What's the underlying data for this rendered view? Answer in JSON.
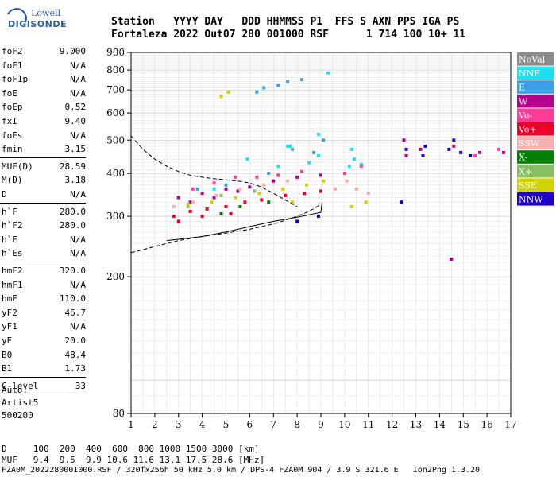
{
  "logo": {
    "line1": "Lowell",
    "line2": "DIGISONDE"
  },
  "header": {
    "row1": "Station   YYYY DAY   DDD HHMMSS P1  FFS S AXN PPS IGA PS",
    "row2": "Fortaleza 2022 Out07 280 001000 RSF      1 714 100 10+ 11"
  },
  "params": {
    "group1": [
      {
        "k": "foF2",
        "v": "9.000"
      },
      {
        "k": "foF1",
        "v": "N/A"
      },
      {
        "k": "foF1p",
        "v": "N/A"
      },
      {
        "k": "foE",
        "v": "N/A"
      },
      {
        "k": "foEp",
        "v": "0.52"
      },
      {
        "k": "fxI",
        "v": "9.40"
      },
      {
        "k": "foEs",
        "v": "N/A"
      },
      {
        "k": "fmin",
        "v": "3.15"
      }
    ],
    "group2": [
      {
        "k": "MUF(D)",
        "v": "28.59"
      },
      {
        "k": "M(D)",
        "v": "3.18"
      },
      {
        "k": "D",
        "v": "N/A"
      }
    ],
    "group3": [
      {
        "k": "h`F",
        "v": "280.0"
      },
      {
        "k": "h`F2",
        "v": "280.0"
      },
      {
        "k": "h`E",
        "v": "N/A"
      },
      {
        "k": "h`Es",
        "v": "N/A"
      }
    ],
    "group4": [
      {
        "k": "hmF2",
        "v": "320.0"
      },
      {
        "k": "hmF1",
        "v": "N/A"
      },
      {
        "k": "hmE",
        "v": "110.0"
      },
      {
        "k": "yF2",
        "v": "46.7"
      },
      {
        "k": "yF1",
        "v": "N/A"
      },
      {
        "k": "yE",
        "v": "20.0"
      },
      {
        "k": "B0",
        "v": "48.4"
      },
      {
        "k": "B1",
        "v": "1.73"
      }
    ],
    "group5": [
      {
        "k": "C-level",
        "v": "33"
      }
    ]
  },
  "auto": {
    "line1": "Auto:",
    "line2": "Artist5",
    "line3": "500200"
  },
  "bottom": {
    "d_line": "D     100  200  400  600  800 1000 1500 3000 [km]",
    "muf_line": "MUF   9.4  9.5  9.9 10.6 11.6 13.1 17.5 28.6 [MHz]",
    "file_line": "FZA0M_2022280001000.RSF / 320fx256h 50 kHz 5.0 km / DPS-4 FZA0M 904 / 3.9 S 321.6 E   Ion2Png 1.3.20"
  },
  "legend": [
    {
      "label": "NoVal",
      "color": "#8c8c8c"
    },
    {
      "label": "NNE",
      "color": "#19e1f0"
    },
    {
      "label": "E",
      "color": "#3ca0e6"
    },
    {
      "label": "W",
      "color": "#b4008c"
    },
    {
      "label": "Vo-",
      "color": "#ff3c96"
    },
    {
      "label": "Vo+",
      "color": "#f00028"
    },
    {
      "label": "SSW",
      "color": "#f5afaf"
    },
    {
      "label": "X-",
      "color": "#008200"
    },
    {
      "label": "X+",
      "color": "#87be64"
    },
    {
      "label": "SSE",
      "color": "#d2d200"
    },
    {
      "label": "NNW",
      "color": "#1e00c8"
    }
  ],
  "chart_data": {
    "type": "scatter",
    "xlabel": "",
    "ylabel": "",
    "xlim": [
      1,
      17
    ],
    "ylim": [
      80,
      900
    ],
    "y_scale": "log",
    "grid": true,
    "x_ticks": [
      1,
      2,
      3,
      4,
      5,
      6,
      7,
      8,
      9,
      10,
      11,
      12,
      13,
      14,
      15,
      16,
      17
    ],
    "y_ticks": [
      80,
      200,
      300,
      400,
      500,
      600,
      700,
      800,
      900
    ],
    "legend_position": "right",
    "series": [
      {
        "name": "NNE",
        "points": [
          [
            8.9,
            520
          ],
          [
            9.3,
            785
          ],
          [
            7.7,
            480
          ],
          [
            10.3,
            470
          ],
          [
            8.5,
            430
          ],
          [
            7.2,
            420
          ],
          [
            4.5,
            360
          ],
          [
            10.4,
            440
          ],
          [
            10.7,
            425
          ],
          [
            8.9,
            450
          ],
          [
            5.9,
            440
          ],
          [
            7.6,
            480
          ],
          [
            10.2,
            420
          ]
        ]
      },
      {
        "name": "E",
        "points": [
          [
            6.3,
            690
          ],
          [
            6.6,
            710
          ],
          [
            7.2,
            720
          ],
          [
            7.6,
            740
          ],
          [
            8.2,
            750
          ],
          [
            7.8,
            470
          ],
          [
            8.7,
            460
          ],
          [
            6.8,
            400
          ],
          [
            5.0,
            370
          ],
          [
            3.8,
            360
          ],
          [
            9.1,
            500
          ]
        ]
      },
      {
        "name": "W",
        "points": [
          [
            3.0,
            340
          ],
          [
            4.0,
            350
          ],
          [
            5.0,
            360
          ],
          [
            6.0,
            365
          ],
          [
            7.0,
            380
          ],
          [
            8.0,
            390
          ],
          [
            9.0,
            395
          ],
          [
            3.5,
            330
          ],
          [
            4.5,
            340
          ],
          [
            5.5,
            355
          ],
          [
            12.6,
            450
          ],
          [
            13.2,
            470
          ],
          [
            14.6,
            480
          ],
          [
            15.7,
            460
          ],
          [
            16.7,
            460
          ],
          [
            14.5,
            225
          ],
          [
            12.5,
            500
          ]
        ]
      },
      {
        "name": "Vo-",
        "points": [
          [
            3.6,
            360
          ],
          [
            4.5,
            375
          ],
          [
            5.4,
            390
          ],
          [
            6.3,
            390
          ],
          [
            7.2,
            395
          ],
          [
            8.2,
            405
          ],
          [
            10.0,
            400
          ],
          [
            10.7,
            420
          ],
          [
            16.5,
            470
          ],
          [
            15.5,
            450
          ]
        ]
      },
      {
        "name": "Vo+",
        "points": [
          [
            2.8,
            300
          ],
          [
            3.5,
            310
          ],
          [
            4.2,
            315
          ],
          [
            5.0,
            320
          ],
          [
            5.8,
            330
          ],
          [
            6.5,
            335
          ],
          [
            7.5,
            345
          ],
          [
            8.3,
            350
          ],
          [
            9.0,
            355
          ],
          [
            3.0,
            290
          ],
          [
            4.0,
            300
          ],
          [
            5.2,
            305
          ]
        ]
      },
      {
        "name": "SSW",
        "points": [
          [
            2.8,
            320
          ],
          [
            3.6,
            330
          ],
          [
            4.6,
            345
          ],
          [
            5.6,
            360
          ],
          [
            6.6,
            370
          ],
          [
            7.6,
            380
          ],
          [
            10.1,
            380
          ],
          [
            10.5,
            360
          ],
          [
            11.0,
            350
          ],
          [
            9.6,
            360
          ]
        ]
      },
      {
        "name": "X-",
        "points": [
          [
            4.8,
            305
          ],
          [
            5.6,
            320
          ],
          [
            6.8,
            330
          ]
        ]
      },
      {
        "name": "X+",
        "points": [
          [
            3.4,
            320
          ],
          [
            4.8,
            345
          ],
          [
            6.2,
            355
          ]
        ]
      },
      {
        "name": "SSE",
        "points": [
          [
            4.8,
            670
          ],
          [
            5.1,
            690
          ],
          [
            3.4,
            325
          ],
          [
            4.4,
            330
          ],
          [
            5.4,
            340
          ],
          [
            6.4,
            350
          ],
          [
            7.4,
            360
          ],
          [
            8.4,
            370
          ],
          [
            9.1,
            380
          ],
          [
            10.3,
            320
          ],
          [
            10.9,
            330
          ],
          [
            7.8,
            330
          ]
        ]
      },
      {
        "name": "NNW",
        "points": [
          [
            12.4,
            330
          ],
          [
            12.6,
            470
          ],
          [
            13.3,
            450
          ],
          [
            13.4,
            480
          ],
          [
            14.4,
            470
          ],
          [
            14.9,
            460
          ],
          [
            14.6,
            500
          ],
          [
            15.3,
            450
          ],
          [
            8.0,
            290
          ],
          [
            8.9,
            300
          ]
        ]
      }
    ],
    "traces": [
      {
        "name": "ionogram-profile-dashed",
        "style": "dashed",
        "points": [
          [
            1,
            515
          ],
          [
            1.5,
            470
          ],
          [
            2,
            440
          ],
          [
            2.5,
            420
          ],
          [
            3,
            405
          ],
          [
            3.5,
            395
          ],
          [
            4,
            390
          ],
          [
            4.5,
            386
          ],
          [
            5,
            383
          ],
          [
            5.5,
            380
          ],
          [
            6,
            375
          ],
          [
            6.5,
            365
          ],
          [
            7,
            350
          ],
          [
            7.5,
            335
          ],
          [
            8,
            320
          ]
        ]
      },
      {
        "name": "ionogram-profile-lower-dashed",
        "style": "dashed",
        "points": [
          [
            1,
            235
          ],
          [
            2,
            245
          ],
          [
            3,
            255
          ],
          [
            4,
            262
          ],
          [
            5,
            268
          ],
          [
            6,
            275
          ],
          [
            7,
            285
          ],
          [
            7.5,
            292
          ],
          [
            8,
            300
          ],
          [
            8.5,
            310
          ],
          [
            9,
            325
          ]
        ]
      },
      {
        "name": "virtual-height-trace",
        "style": "solid",
        "points": [
          [
            2.5,
            255
          ],
          [
            4,
            262
          ],
          [
            5,
            270
          ],
          [
            6,
            280
          ],
          [
            7,
            290
          ],
          [
            8,
            298
          ],
          [
            9,
            308
          ],
          [
            9.05,
            330
          ]
        ]
      }
    ]
  }
}
